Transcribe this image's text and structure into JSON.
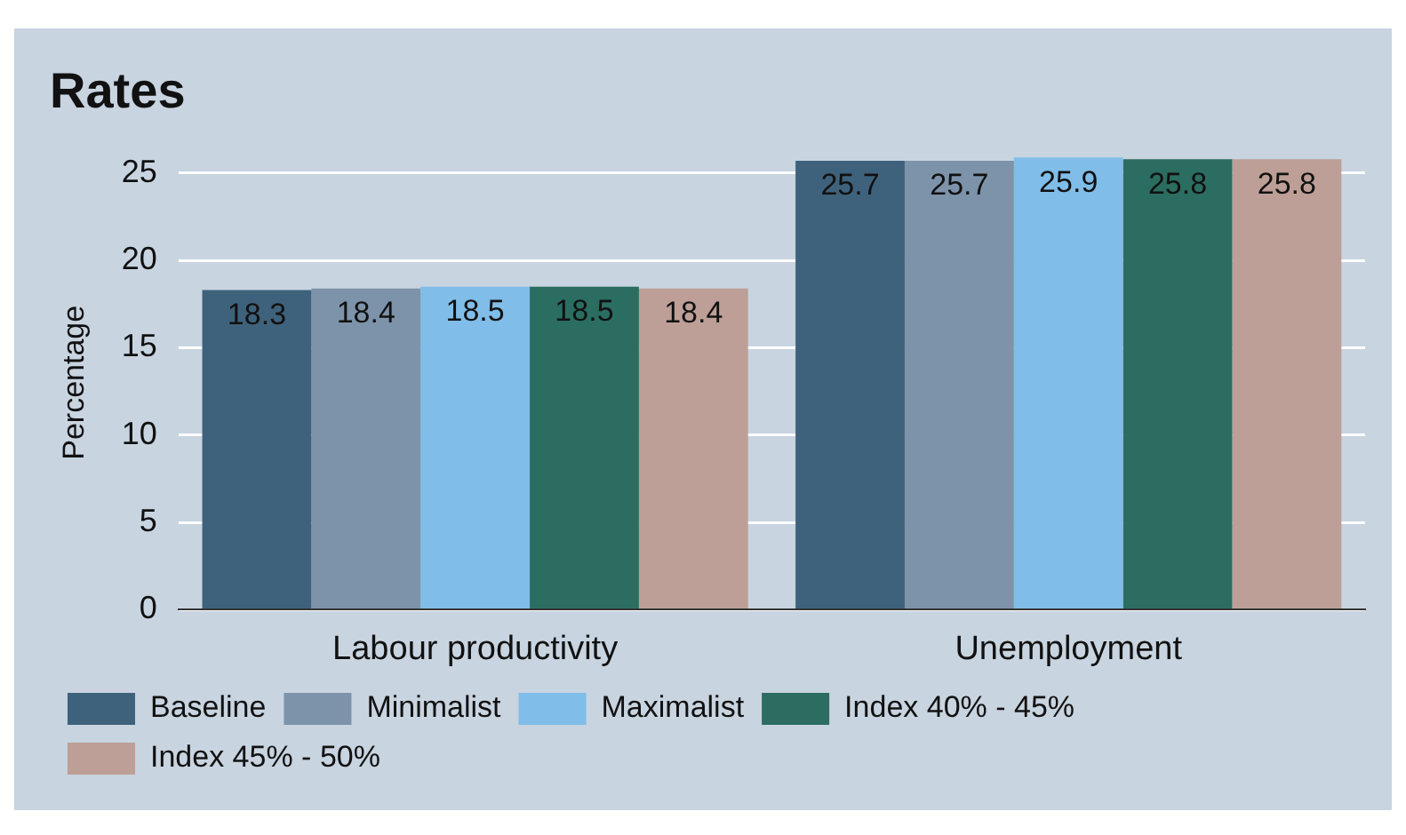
{
  "chart_data": {
    "type": "bar",
    "title": "Rates",
    "ylabel": "Percentage",
    "categories": [
      "Labour productivity",
      "Unemployment"
    ],
    "series": [
      {
        "name": "Baseline",
        "color": "#3e627c",
        "values": [
          18.3,
          25.7
        ]
      },
      {
        "name": "Minimalist",
        "color": "#7d93aa",
        "values": [
          18.4,
          25.7
        ]
      },
      {
        "name": "Maximalist",
        "color": "#80bde8",
        "values": [
          18.5,
          25.9
        ]
      },
      {
        "name": "Index 40% - 45%",
        "color": "#2b6d61",
        "values": [
          18.5,
          25.8
        ]
      },
      {
        "name": "Index 45% - 50%",
        "color": "#bd9f97",
        "values": [
          18.4,
          25.8
        ]
      }
    ],
    "ylim": [
      0,
      26
    ],
    "yticks": [
      0,
      5,
      10,
      15,
      20,
      25
    ],
    "grid": "y",
    "legend": "bottom",
    "data_labels": true
  }
}
